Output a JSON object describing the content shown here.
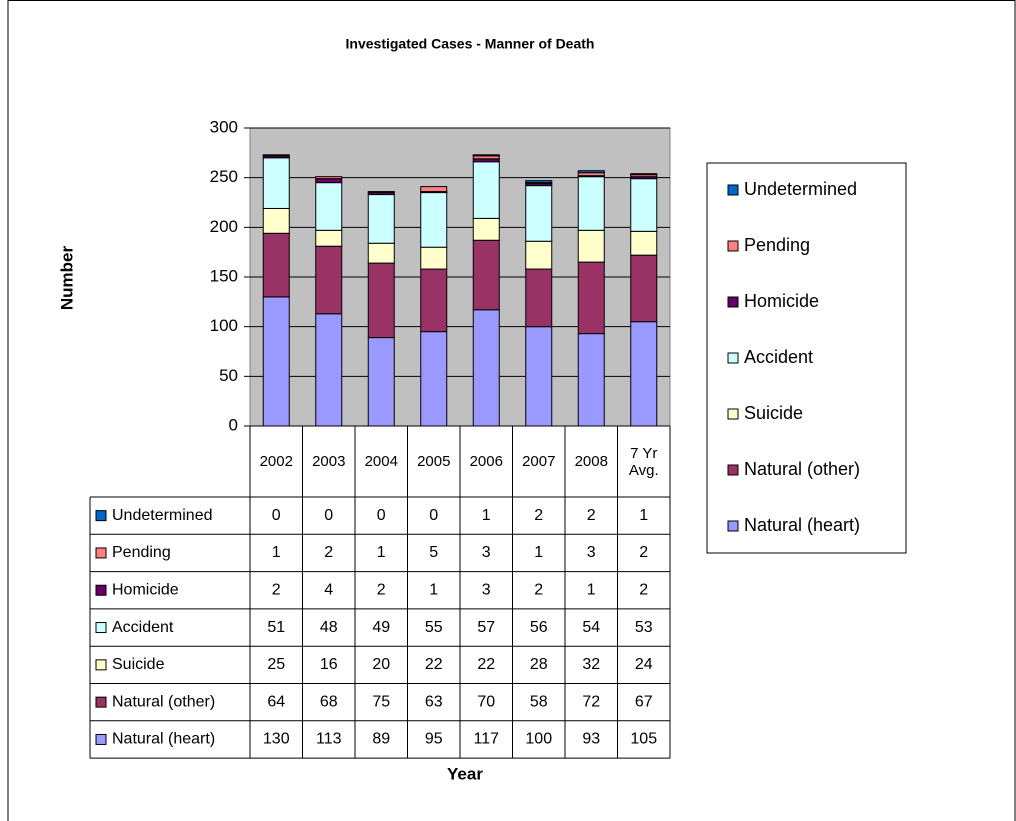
{
  "chart_data": {
    "type": "bar",
    "stacked": true,
    "title": "Investigated Cases - Manner of Death",
    "x_label": "Year",
    "y_label": "Number",
    "categories": [
      "2002",
      "2003",
      "2004",
      "2005",
      "2006",
      "2007",
      "2008",
      "7 Yr Avg."
    ],
    "series": [
      {
        "name": "Natural (heart)",
        "color": "#9999ff",
        "values": [
          130,
          113,
          89,
          95,
          117,
          100,
          93,
          105
        ]
      },
      {
        "name": "Natural (other)",
        "color": "#993366",
        "values": [
          64,
          68,
          75,
          63,
          70,
          58,
          72,
          67
        ]
      },
      {
        "name": "Suicide",
        "color": "#ffffcc",
        "values": [
          25,
          16,
          20,
          22,
          22,
          28,
          32,
          24
        ]
      },
      {
        "name": "Accident",
        "color": "#ccffff",
        "values": [
          51,
          48,
          49,
          55,
          57,
          56,
          54,
          53
        ]
      },
      {
        "name": "Homicide",
        "color": "#660066",
        "values": [
          2,
          4,
          2,
          1,
          3,
          2,
          1,
          2
        ]
      },
      {
        "name": "Pending",
        "color": "#ff8080",
        "values": [
          1,
          2,
          1,
          5,
          3,
          1,
          3,
          2
        ]
      },
      {
        "name": "Undetermined",
        "color": "#0066cc",
        "values": [
          0,
          0,
          0,
          0,
          1,
          2,
          2,
          1
        ]
      }
    ],
    "ylim": [
      0,
      300
    ],
    "yticks": [
      0,
      50,
      100,
      150,
      200,
      250,
      300
    ],
    "grid": true,
    "legend": "right",
    "data_table": true
  }
}
